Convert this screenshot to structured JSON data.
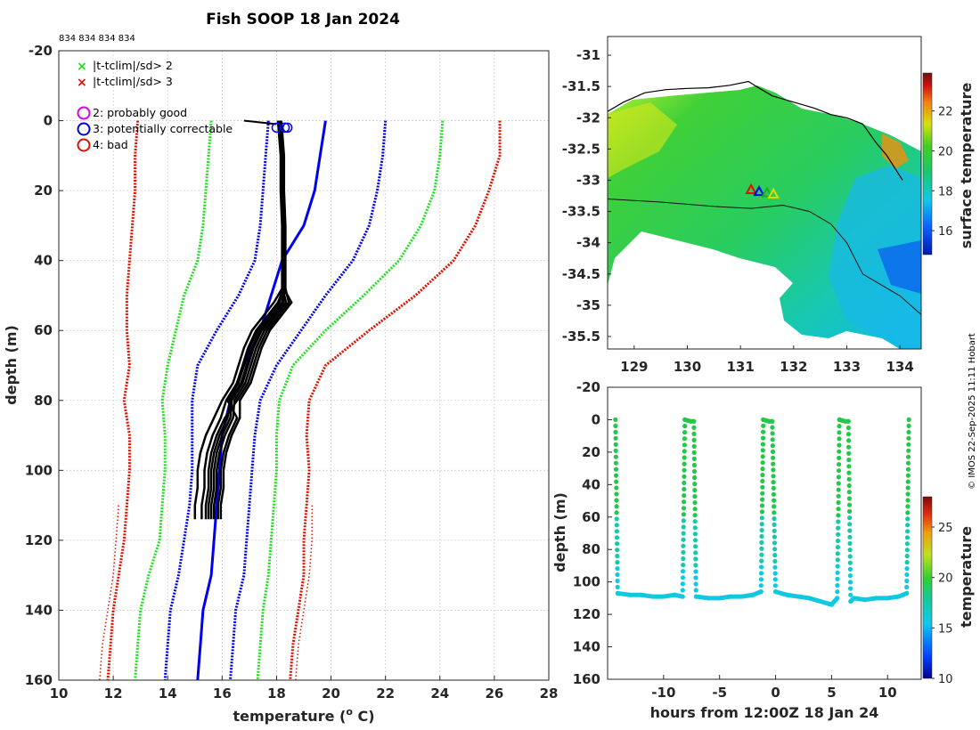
{
  "figure": {
    "title": "Fish SOOP 18 Jan 2024",
    "ids_text": "834 834 834 834",
    "credit": "© IMOS 22-Sep-2025 11:11 Hobart"
  },
  "legend": {
    "cross_green": "|t-tclim|/sd> 2",
    "cross_red": "|t-tclim|/sd> 3",
    "flag2": "2: probably good",
    "flag3": "3: potentially correctable",
    "flag4": "4: bad"
  },
  "colors": {
    "green": "#22dd22",
    "red": "#dd1100",
    "blue": "#0000ee",
    "magenta": "#dd00dd",
    "profile": "#000000"
  },
  "chart_data": [
    {
      "type": "line",
      "name": "profile",
      "xlabel": "temperature (o C)",
      "xlabel_main": "temperature (",
      "xlabel_sup": "o",
      "xlabel_tail": " C)",
      "ylabel": "depth (m)",
      "xlim": [
        10,
        28
      ],
      "ylim": [
        -20,
        160
      ],
      "xticks": [
        10,
        12,
        14,
        16,
        18,
        20,
        22,
        24,
        26,
        28
      ],
      "yticks": [
        -20,
        0,
        20,
        40,
        60,
        80,
        100,
        120,
        140,
        160
      ],
      "series": [
        {
          "name": "clim_mean",
          "color": "#0000ee",
          "style": "solid",
          "width": 3,
          "depth": [
            0,
            10,
            20,
            30,
            40,
            50,
            60,
            70,
            80,
            90,
            100,
            110,
            120,
            130,
            140,
            150,
            160
          ],
          "temp": [
            19.8,
            19.6,
            19.4,
            19.0,
            18.2,
            17.8,
            17.4,
            16.8,
            16.3,
            16.0,
            15.9,
            15.8,
            15.7,
            15.6,
            15.3,
            15.2,
            15.1
          ]
        },
        {
          "name": "clim_m1sd",
          "color": "#0000ee",
          "style": "dotted",
          "width": 3,
          "depth": [
            0,
            10,
            20,
            30,
            40,
            50,
            60,
            70,
            80,
            90,
            100,
            110,
            120,
            130,
            140,
            150,
            160
          ],
          "temp": [
            17.7,
            17.6,
            17.5,
            17.4,
            17.2,
            16.6,
            15.8,
            15.1,
            14.9,
            14.9,
            14.9,
            14.8,
            14.6,
            14.4,
            14.1,
            14.0,
            13.9
          ]
        },
        {
          "name": "clim_p1sd",
          "color": "#0000ee",
          "style": "dotted",
          "width": 3,
          "depth": [
            0,
            10,
            20,
            30,
            40,
            50,
            60,
            70,
            80,
            90,
            100,
            110,
            120,
            130,
            140,
            150,
            160
          ],
          "temp": [
            22.0,
            21.9,
            21.7,
            21.4,
            20.8,
            19.8,
            18.9,
            18.0,
            17.4,
            17.2,
            17.1,
            17.0,
            16.9,
            16.8,
            16.5,
            16.4,
            16.3
          ]
        },
        {
          "name": "clim_m2sd",
          "color": "#22dd22",
          "style": "dotted",
          "width": 3,
          "depth": [
            0,
            10,
            20,
            30,
            40,
            50,
            60,
            70,
            80,
            90,
            100,
            110,
            120,
            130,
            140,
            150,
            160
          ],
          "temp": [
            15.6,
            15.5,
            15.4,
            15.3,
            15.1,
            14.6,
            14.3,
            14.0,
            13.8,
            13.9,
            13.9,
            13.8,
            13.7,
            13.3,
            13.0,
            12.9,
            12.8
          ]
        },
        {
          "name": "clim_p2sd",
          "color": "#22dd22",
          "style": "dotted",
          "width": 3,
          "depth": [
            0,
            10,
            20,
            30,
            40,
            50,
            60,
            70,
            80,
            90,
            100,
            110,
            120,
            130,
            140,
            150,
            160
          ],
          "temp": [
            24.1,
            24.0,
            23.8,
            23.3,
            22.5,
            21.2,
            19.8,
            18.6,
            18.1,
            18.0,
            18.0,
            17.9,
            17.8,
            17.7,
            17.5,
            17.4,
            17.3
          ]
        },
        {
          "name": "clim_m3sd",
          "color": "#dd1100",
          "style": "dotted",
          "width": 3,
          "depth": [
            0,
            10,
            20,
            30,
            40,
            50,
            60,
            70,
            80,
            90,
            100,
            110,
            120,
            130,
            140,
            150,
            160
          ],
          "temp": [
            12.9,
            12.8,
            12.8,
            12.7,
            12.6,
            12.5,
            12.5,
            12.6,
            12.4,
            12.6,
            12.6,
            12.5,
            12.4,
            12.2,
            12.0,
            11.9,
            11.8
          ]
        },
        {
          "name": "clim_p3sd",
          "color": "#dd1100",
          "style": "dotted",
          "width": 3,
          "depth": [
            0,
            10,
            20,
            30,
            40,
            50,
            60,
            70,
            80,
            90,
            100,
            110,
            120,
            130,
            140,
            150,
            160
          ],
          "temp": [
            26.2,
            26.2,
            25.8,
            25.3,
            24.5,
            23.1,
            21.4,
            19.8,
            19.2,
            19.1,
            19.2,
            19.1,
            19.0,
            19.0,
            18.8,
            18.6,
            18.5
          ]
        },
        {
          "name": "clim_m3sd_b",
          "color": "#dd1100",
          "style": "dotted",
          "width": 1.5,
          "depth": [
            110,
            120,
            130,
            140,
            150,
            160
          ],
          "temp": [
            12.2,
            12.1,
            12.0,
            11.8,
            11.6,
            11.5
          ]
        },
        {
          "name": "clim_p3sd_b",
          "color": "#dd1100",
          "style": "dotted",
          "width": 1.5,
          "depth": [
            110,
            120,
            130,
            140,
            150,
            160
          ],
          "temp": [
            19.3,
            19.3,
            19.2,
            19.0,
            18.8,
            18.7
          ]
        }
      ],
      "profiles": {
        "color": "#000000",
        "base": {
          "depth": [
            0,
            5,
            10,
            20,
            30,
            40,
            48,
            52,
            56,
            60,
            65,
            70,
            75,
            80,
            85,
            90,
            95,
            100,
            105,
            110,
            114
          ],
          "temp": [
            18.05,
            18.1,
            18.15,
            18.15,
            18.2,
            18.2,
            18.2,
            17.9,
            17.5,
            17.1,
            16.8,
            16.6,
            16.4,
            16.0,
            15.7,
            15.4,
            15.2,
            15.1,
            15.1,
            15.0,
            15.0
          ]
        },
        "offsets": [
          [
            0,
            0,
            0
          ],
          [
            0.1,
            0.15,
            0.25
          ],
          [
            0.2,
            0.3,
            0.5
          ],
          [
            0.05,
            0.45,
            0.7
          ],
          [
            0.15,
            0.2,
            0.85
          ],
          [
            0.25,
            0.55,
            0.4
          ],
          [
            0.12,
            0.65,
            0.95
          ],
          [
            0.18,
            0.35,
            0.6
          ]
        ]
      },
      "surface_segment": {
        "temp": [
          16.8,
          18.0
        ],
        "depth": [
          0,
          1
        ]
      },
      "surface_markers": [
        {
          "temp": 18.0,
          "depth": 2
        },
        {
          "temp": 18.3,
          "depth": 2
        },
        {
          "temp": 18.4,
          "depth": 2
        }
      ]
    },
    {
      "type": "heatmap",
      "name": "surface-temperature-map",
      "xlim": [
        128.5,
        134.4
      ],
      "ylim": [
        -35.7,
        -30.7
      ],
      "xticks": [
        129,
        130,
        131,
        132,
        133,
        134
      ],
      "yticks": [
        -31,
        -31.5,
        -32,
        -32.5,
        -33,
        -33.5,
        -34,
        -34.5,
        -35,
        -35.5
      ],
      "xtick_labels": [
        "129",
        "130",
        "131",
        "132",
        "133",
        "134"
      ],
      "ytick_labels": [
        "-31",
        "-31.5",
        "-32",
        "-32.5",
        "-33",
        "-33.5",
        "-34",
        "-34.5",
        "-35",
        "-35.5"
      ],
      "colorbar": {
        "label": "surface temperature",
        "range": [
          14.8,
          23.9
        ],
        "ticks": [
          16,
          18,
          20,
          22
        ],
        "tick_labels": [
          "16",
          "18",
          "20",
          "22"
        ]
      },
      "coast": {
        "lon": [
          128.5,
          128.8,
          129.2,
          129.6,
          130.0,
          130.4,
          130.8,
          131.15,
          131.3,
          131.6,
          132.0,
          132.4,
          132.7,
          133.0,
          133.3,
          133.55,
          133.75,
          133.9,
          134.05
        ],
        "lat": [
          -31.9,
          -31.75,
          -31.6,
          -31.55,
          -31.53,
          -31.52,
          -31.48,
          -31.42,
          -31.5,
          -31.65,
          -31.75,
          -31.85,
          -31.95,
          -32.0,
          -32.1,
          -32.4,
          -32.6,
          -32.8,
          -33.0
        ]
      },
      "contour": {
        "lon": [
          128.5,
          129.5,
          130.5,
          131.2,
          131.8,
          132.3,
          132.7,
          133.0,
          133.3,
          133.7,
          134.0,
          134.4
        ],
        "lat": [
          -33.3,
          -33.35,
          -33.42,
          -33.45,
          -33.4,
          -33.5,
          -33.7,
          -34.0,
          -34.5,
          -34.7,
          -34.85,
          -35.15
        ]
      },
      "ship": [
        {
          "lon": 131.2,
          "lat": -33.15,
          "color": "#dd1100"
        },
        {
          "lon": 131.35,
          "lat": -33.18,
          "color": "#0000ee"
        },
        {
          "lon": 131.5,
          "lat": -33.2,
          "color": "#22aa22"
        },
        {
          "lon": 131.62,
          "lat": -33.22,
          "color": "#dddd00"
        }
      ]
    },
    {
      "type": "scatter",
      "name": "depth-time",
      "xlabel": "hours from 12:00Z 18 Jan 24",
      "ylabel": "depth (m)",
      "xlim": [
        -15,
        13
      ],
      "ylim": [
        -20,
        160
      ],
      "xticks": [
        -10,
        -5,
        0,
        5,
        10
      ],
      "xtick_labels": [
        "-10",
        "-5",
        "0",
        "5",
        "10"
      ],
      "yticks": [
        -20,
        0,
        20,
        40,
        60,
        80,
        100,
        120,
        140,
        160
      ],
      "colorbar": {
        "label": "temperature",
        "range": [
          10,
          28
        ],
        "ticks": [
          10,
          15,
          20,
          25
        ],
        "tick_labels": [
          "10",
          "15",
          "20",
          "25"
        ]
      },
      "x": [
        -14.3,
        -14.1,
        -13,
        -12,
        -11,
        -10,
        -9,
        -8.3,
        -8.1,
        -7.6,
        -7.3,
        -7.1,
        -6,
        -5,
        -4,
        -3,
        -2,
        -1.3,
        -1.1,
        -0.6,
        -0.3,
        0,
        1,
        2,
        3,
        4,
        5,
        5.5,
        5.7,
        6.2,
        6.5,
        6.7,
        7,
        8,
        9,
        10,
        11,
        11.7,
        11.9
      ],
      "y": [
        0,
        107,
        108,
        108,
        109,
        109,
        108,
        109,
        0,
        1,
        1,
        109,
        110,
        110,
        109,
        109,
        108,
        106,
        0,
        1,
        1,
        106,
        108,
        109,
        110,
        112,
        114,
        110,
        0,
        1,
        1,
        112,
        110,
        111,
        110,
        110,
        109,
        107,
        0
      ]
    }
  ]
}
